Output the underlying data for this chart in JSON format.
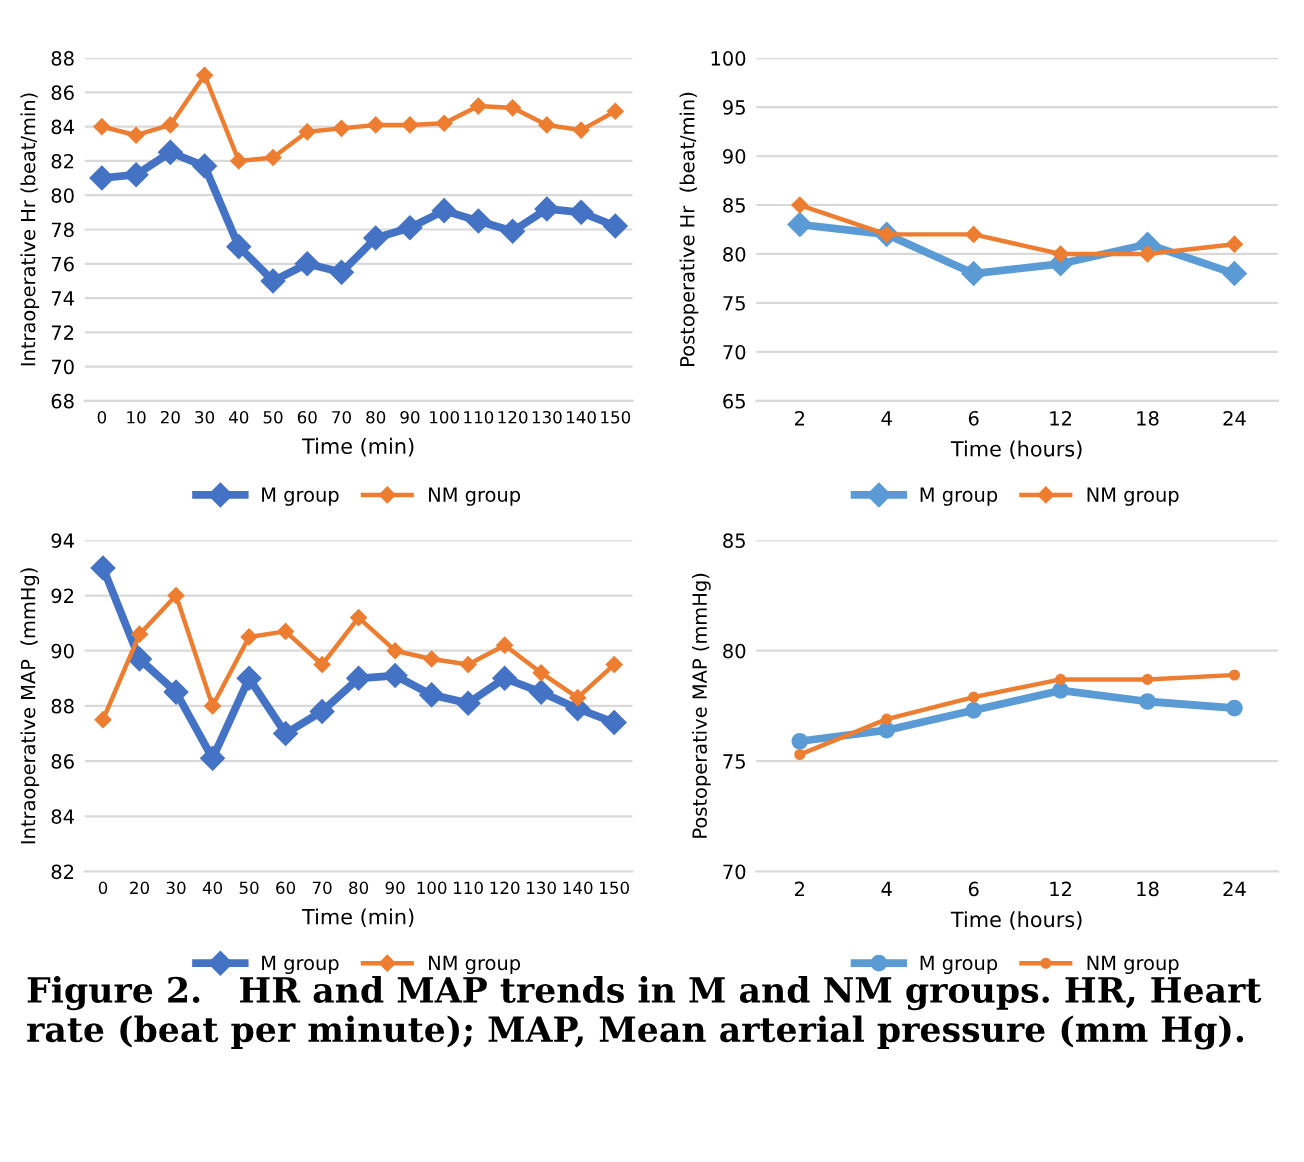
{
  "chart_data": [
    {
      "type": "line",
      "ylabel": "Intraoperative Hr (beat/min)",
      "xlabel": "Time (min)",
      "categories": [
        "0",
        "10",
        "20",
        "30",
        "40",
        "50",
        "60",
        "70",
        "80",
        "90",
        "100",
        "110",
        "120",
        "130",
        "140",
        "150"
      ],
      "ylim": [
        68,
        88
      ],
      "yticks": [
        68,
        70,
        72,
        74,
        76,
        78,
        80,
        82,
        84,
        86,
        88
      ],
      "grid": "y",
      "legend": "bottom",
      "marker": "diamond",
      "line_style": "solid",
      "series": [
        {
          "name": "M group",
          "color": "#4472c4",
          "values": [
            81,
            81.2,
            82.5,
            81.7,
            77,
            75,
            76,
            75.5,
            77.5,
            78.1,
            79.1,
            78.5,
            77.9,
            79.2,
            79,
            78.2
          ]
        },
        {
          "name": "NM group",
          "color": "#ed7d31",
          "values": [
            84,
            83.5,
            84.1,
            87,
            82,
            82.2,
            83.7,
            83.9,
            84.1,
            84.1,
            84.2,
            85.2,
            85.1,
            84.1,
            83.8,
            84.9
          ]
        }
      ]
    },
    {
      "type": "line",
      "ylabel": "Postoperative Hr  (beat/min)",
      "xlabel": "Time (hours)",
      "categories": [
        "2",
        "4",
        "6",
        "12",
        "18",
        "24"
      ],
      "ylim": [
        65,
        100
      ],
      "yticks": [
        65,
        70,
        75,
        80,
        85,
        90,
        95,
        100
      ],
      "grid": "y",
      "legend": "bottom",
      "marker": "diamond",
      "line_style": "solid",
      "series": [
        {
          "name": "M group",
          "color": "#5b9bd5",
          "values": [
            83,
            82,
            78,
            79,
            81,
            78
          ]
        },
        {
          "name": "NM group",
          "color": "#ed7d31",
          "values": [
            85,
            82,
            82,
            80,
            80,
            81
          ]
        }
      ]
    },
    {
      "type": "line",
      "ylabel": "Intraoperative MAP  (mmHg)",
      "xlabel": "Time (min)",
      "categories": [
        "0",
        "20",
        "30",
        "40",
        "50",
        "60",
        "70",
        "80",
        "90",
        "100",
        "110",
        "120",
        "130",
        "140",
        "150"
      ],
      "ylim": [
        82,
        94
      ],
      "yticks": [
        82,
        84,
        86,
        88,
        90,
        92,
        94
      ],
      "grid": "y",
      "legend": "bottom",
      "marker": "diamond",
      "line_style": "solid",
      "series": [
        {
          "name": "M group",
          "color": "#4472c4",
          "values": [
            93,
            89.7,
            88.5,
            86.1,
            89,
            87,
            87.8,
            89,
            89.1,
            88.4,
            88.1,
            89,
            88.5,
            87.9,
            87.4
          ]
        },
        {
          "name": "NM group",
          "color": "#ed7d31",
          "values": [
            87.5,
            90.6,
            92,
            88,
            90.5,
            90.7,
            89.5,
            91.2,
            90,
            89.7,
            89.5,
            90.2,
            89.2,
            88.3,
            89.5
          ]
        }
      ]
    },
    {
      "type": "line",
      "ylabel": "Postoperative MAP (mmHg)",
      "xlabel": "Time (hours)",
      "categories": [
        "2",
        "4",
        "6",
        "12",
        "18",
        "24"
      ],
      "ylim": [
        70,
        85
      ],
      "yticks": [
        70,
        75,
        80,
        85
      ],
      "grid": "y",
      "legend": "bottom",
      "marker": "circle",
      "line_style": "solid",
      "annotations": [
        "Figure 2.   HR and MAP trends in M and NM groups. HR, Heart rate (beat per minute); MAP, Mean arterial pressure (mm Hg)."
      ],
      "series": [
        {
          "name": "M group",
          "color": "#5b9bd5",
          "values": [
            75.9,
            76.4,
            77.3,
            78.2,
            77.7,
            77.4
          ]
        },
        {
          "name": "NM group",
          "color": "#ed7d31",
          "values": [
            75.3,
            76.9,
            77.9,
            78.7,
            78.7,
            78.9
          ]
        }
      ]
    }
  ]
}
